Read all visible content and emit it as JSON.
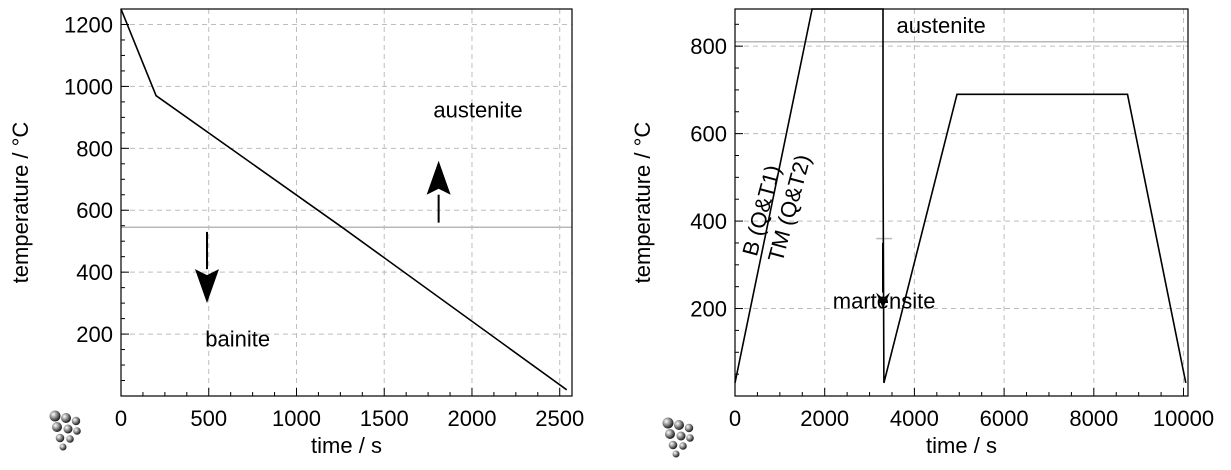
{
  "chart_data": [
    {
      "type": "line",
      "xlabel": "time / s",
      "ylabel": "temperature / °C",
      "xlim": [
        0,
        2570
      ],
      "ylim": [
        0,
        1250
      ],
      "xticks": [
        0,
        500,
        1000,
        1500,
        2000,
        2500
      ],
      "yticks": [
        200,
        400,
        600,
        800,
        1000,
        1200
      ],
      "grid": true,
      "series": [
        {
          "x": [
            0,
            200,
            1260,
            2540
          ],
          "y": [
            1250,
            970,
            545,
            20
          ]
        }
      ],
      "reference_lines": [
        {
          "y": 545
        }
      ],
      "annotations": [
        {
          "text": "austenite",
          "x": 1780,
          "y": 900
        },
        {
          "text": "bainite",
          "x": 480,
          "y": 160
        }
      ],
      "arrows": [
        {
          "direction": "up",
          "x": 1810,
          "y_from": 560,
          "y_to": 760
        },
        {
          "direction": "down",
          "x": 490,
          "y_from": 530,
          "y_to": 300
        }
      ]
    },
    {
      "type": "line",
      "xlabel": "time / s",
      "ylabel": "temperature / °C",
      "xlim": [
        0,
        10100
      ],
      "ylim": [
        0,
        885
      ],
      "xticks": [
        0,
        2000,
        4000,
        6000,
        8000,
        10000
      ],
      "yticks": [
        200,
        400,
        600,
        800
      ],
      "grid": true,
      "series": [
        {
          "x": [
            0,
            1720,
            3300,
            3300,
            3320,
            4950,
            8750,
            10050
          ],
          "y": [
            30,
            885,
            885,
            560,
            30,
            690,
            690,
            30
          ]
        }
      ],
      "reference_lines": [
        {
          "y": 810
        },
        {
          "y": 360,
          "x_range": [
            3150,
            3500
          ]
        }
      ],
      "annotations": [
        {
          "text": "austenite",
          "x": 3600,
          "y": 830
        },
        {
          "text": "martensite",
          "x": 2180,
          "y": 200
        },
        {
          "text": "B (Q&T1)",
          "x": 750,
          "y": 420,
          "rotation": -75
        },
        {
          "text": "TM (Q&T2)",
          "x": 1370,
          "y": 425,
          "rotation": -75
        }
      ],
      "arrows": [
        {
          "direction": "down",
          "x": 3300,
          "y_from": 350,
          "y_to": 200
        }
      ]
    }
  ]
}
